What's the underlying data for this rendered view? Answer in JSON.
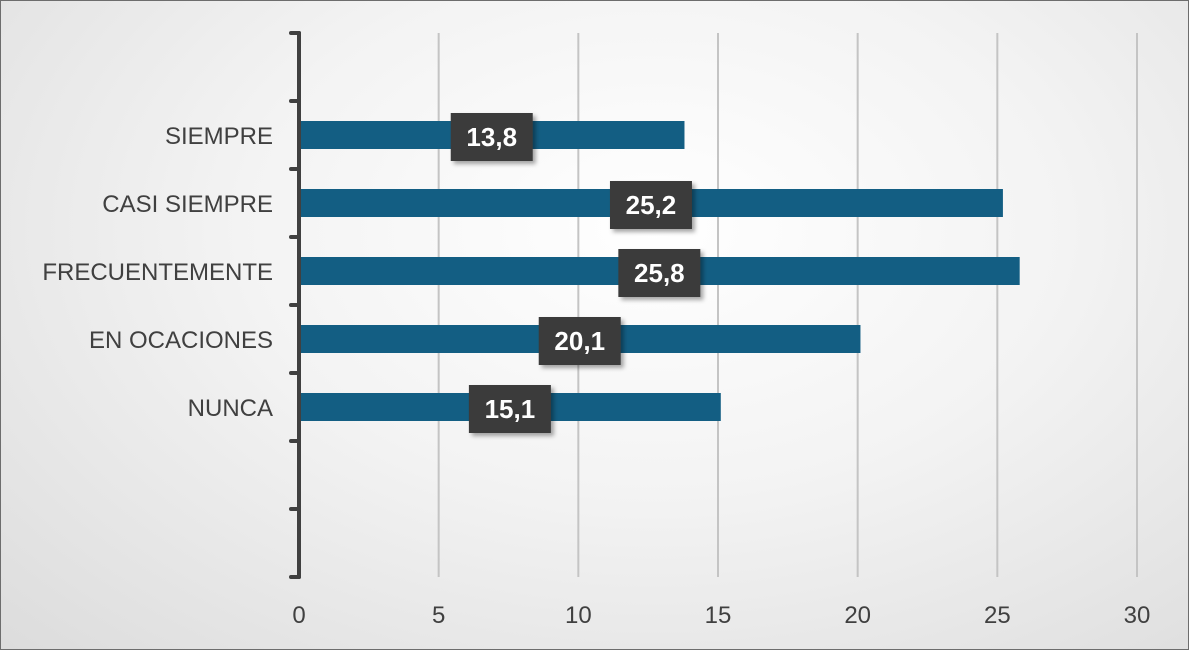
{
  "chart_data": {
    "type": "bar",
    "orientation": "horizontal",
    "categories": [
      "SIEMPRE",
      "CASI SIEMPRE",
      "FRECUENTEMENTE",
      "EN OCACIONES",
      "NUNCA"
    ],
    "values": [
      13.8,
      25.2,
      25.8,
      20.1,
      15.1
    ],
    "data_labels": [
      "13,8",
      "25,2",
      "25,8",
      "20,1",
      "15,1"
    ],
    "x_ticks": [
      "0",
      "5",
      "10",
      "15",
      "20",
      "25",
      "30"
    ],
    "xlim": [
      0,
      30
    ],
    "title": "",
    "xlabel": "",
    "ylabel": "",
    "grid": "vertical",
    "legend": "none",
    "colors": {
      "bar": "#135e83",
      "label_bg": "#3b3b3b",
      "label_text": "#ffffff",
      "gridline": "#c4c4c4",
      "axis": "#404040"
    }
  }
}
